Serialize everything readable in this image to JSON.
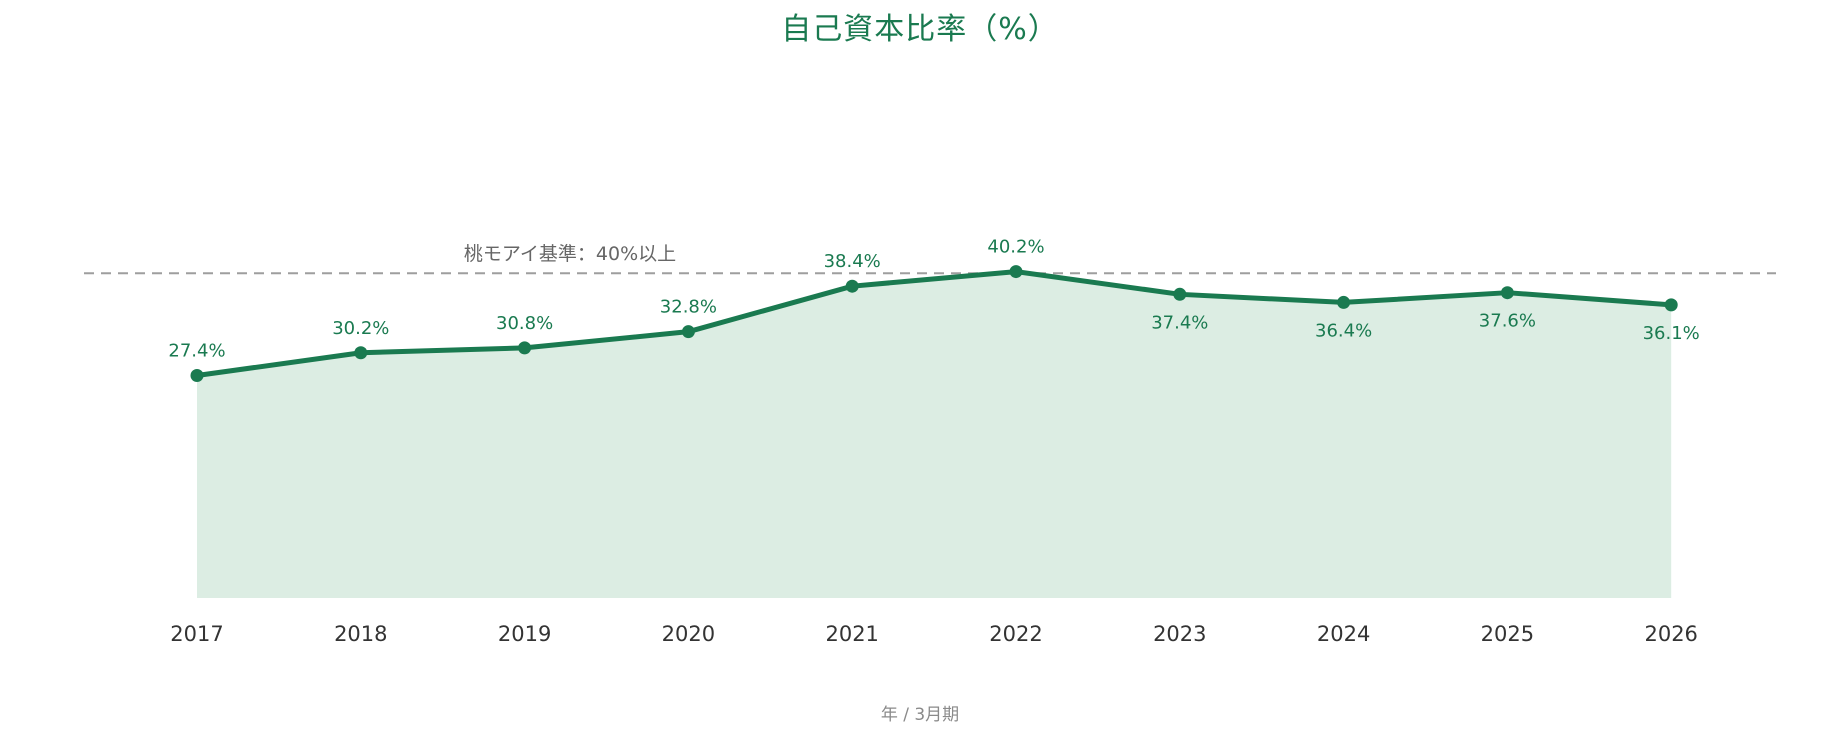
{
  "chart_data": {
    "type": "area",
    "title": "自己資本比率（%）",
    "xlabel": "年 / 3月期",
    "ylabel": "",
    "categories": [
      "2017",
      "2018",
      "2019",
      "2020",
      "2021",
      "2022",
      "2023",
      "2024",
      "2025",
      "2026"
    ],
    "series": [
      {
        "values": [
          27.4,
          30.2,
          30.8,
          32.8,
          38.4,
          40.2,
          37.4,
          36.4,
          37.6,
          36.1
        ],
        "data_labels": [
          "27.4%",
          "30.2%",
          "30.8%",
          "32.8%",
          "38.4%",
          "40.2%",
          "37.4%",
          "36.4%",
          "37.6%",
          "36.1%"
        ]
      }
    ],
    "reference_line": {
      "value": 40,
      "label": "桃モアイ基準：40%以上",
      "style": "dashed"
    },
    "ylim": [
      0,
      50
    ],
    "grid": false,
    "legend": "none",
    "colors": {
      "line": "#1a7a50",
      "area": "#dcede3",
      "reference": "#9e9e9e",
      "reference_label": "#666666",
      "tick": "#333333"
    }
  }
}
